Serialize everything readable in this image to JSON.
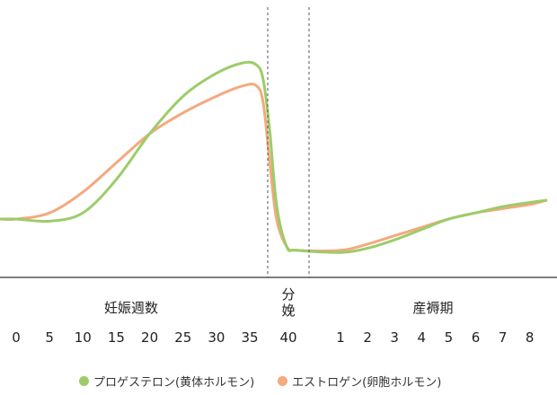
{
  "chart_data": {
    "type": "line",
    "title": "",
    "xlabel": "",
    "ylabel": "",
    "grid": false,
    "legend_position": "bottom",
    "section_labels": {
      "pregnancy": "妊娠週数",
      "delivery": "分娩",
      "postpartum": "産褥期"
    },
    "pregnancy_ticks": [
      "0",
      "5",
      "10",
      "15",
      "20",
      "25",
      "30",
      "35"
    ],
    "delivery_tick": "40",
    "postpartum_ticks": [
      "1",
      "2",
      "3",
      "4",
      "5",
      "6",
      "7",
      "8"
    ],
    "series": [
      {
        "name": "プロゲステロン(黄体ホルモン)",
        "color": "#9ccc6a",
        "pregnancy": [
          [
            0,
            0.28
          ],
          [
            5,
            0.27
          ],
          [
            10,
            0.31
          ],
          [
            15,
            0.47
          ],
          [
            20,
            0.69
          ],
          [
            25,
            0.87
          ],
          [
            30,
            0.98
          ],
          [
            34,
            1.03
          ],
          [
            36,
            1.02
          ],
          [
            37,
            0.95
          ],
          [
            38,
            0.7
          ],
          [
            39,
            0.35
          ],
          [
            40.5,
            0.15
          ],
          [
            42,
            0.13
          ]
        ],
        "postpartum": [
          [
            1,
            0.12
          ],
          [
            2,
            0.14
          ],
          [
            3,
            0.18
          ],
          [
            4,
            0.23
          ],
          [
            5,
            0.28
          ],
          [
            6,
            0.31
          ],
          [
            7,
            0.34
          ],
          [
            8,
            0.36
          ],
          [
            8.6,
            0.37
          ]
        ]
      },
      {
        "name": "エストロゲン(卵胞ホルモン)",
        "color": "#f4a97e",
        "pregnancy": [
          [
            0,
            0.28
          ],
          [
            5,
            0.31
          ],
          [
            10,
            0.41
          ],
          [
            15,
            0.55
          ],
          [
            20,
            0.69
          ],
          [
            25,
            0.79
          ],
          [
            30,
            0.87
          ],
          [
            34,
            0.92
          ],
          [
            36,
            0.92
          ],
          [
            37,
            0.84
          ],
          [
            38,
            0.55
          ],
          [
            39,
            0.28
          ],
          [
            40.5,
            0.15
          ],
          [
            42,
            0.13
          ]
        ],
        "postpartum": [
          [
            1,
            0.13
          ],
          [
            2,
            0.16
          ],
          [
            3,
            0.2
          ],
          [
            4,
            0.24
          ],
          [
            5,
            0.28
          ],
          [
            6,
            0.31
          ],
          [
            7,
            0.33
          ],
          [
            8,
            0.35
          ],
          [
            8.6,
            0.37
          ]
        ]
      }
    ]
  }
}
